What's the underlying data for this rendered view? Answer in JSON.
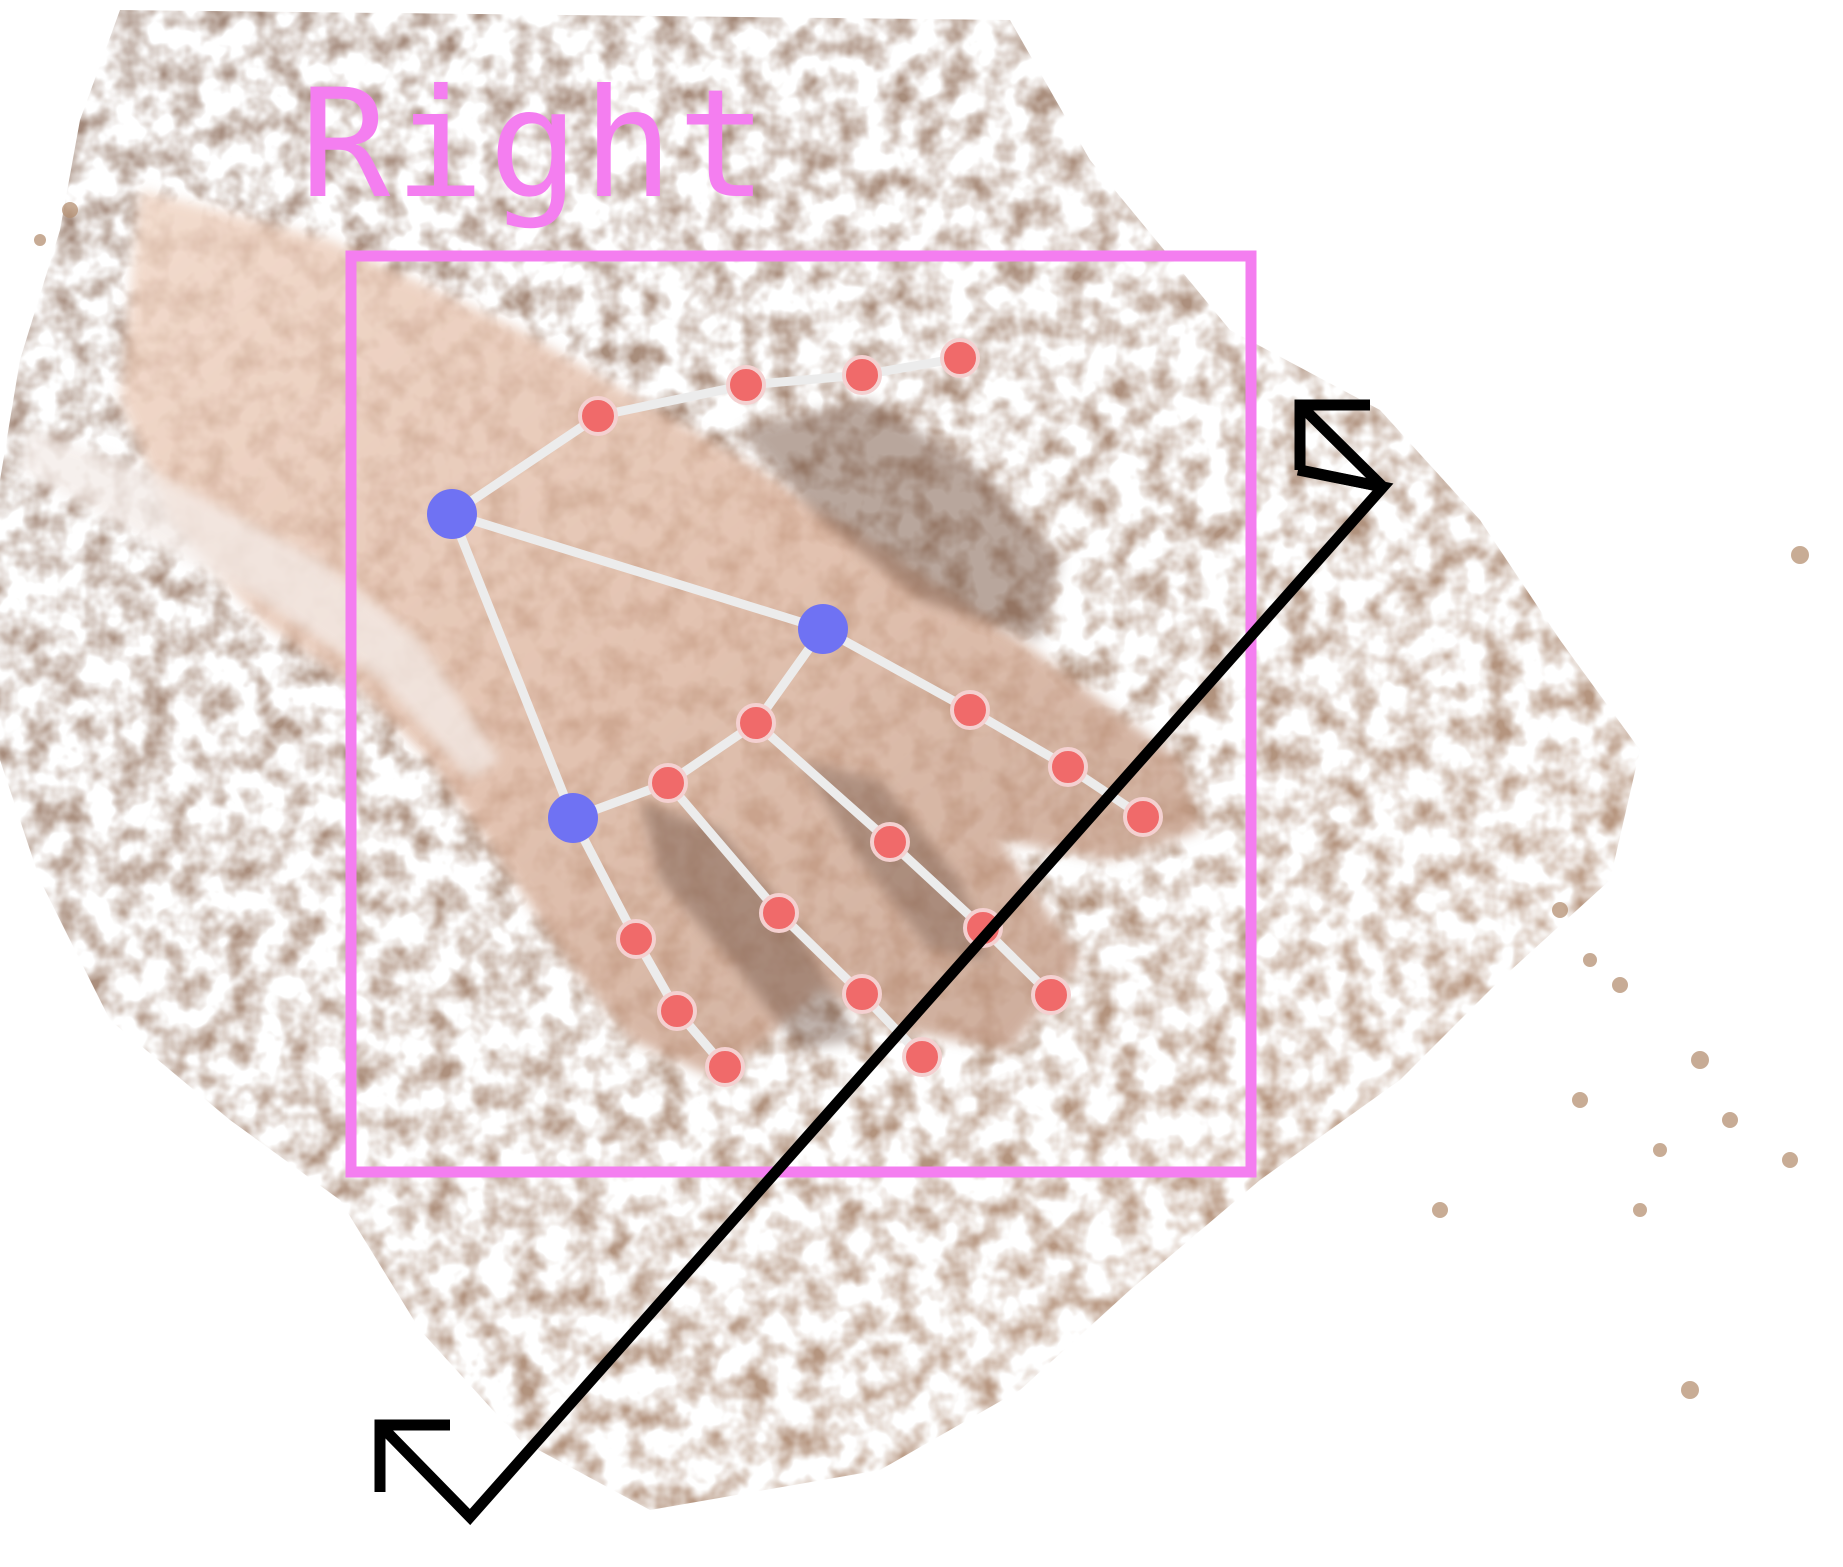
{
  "hand_label": {
    "text": "Right"
  },
  "colors": {
    "label": "#f47ef0",
    "bounding_box": "#f47ef0",
    "skeleton_line": "#ececec",
    "joint_fill": "#f06a6a",
    "joint_outline": "#f4d0d0",
    "anchor_joint_fill": "#6f72f3",
    "arrow": "#000000",
    "background": "#ffffff",
    "hand_skin_light": "#e6c2ad",
    "hand_skin_dark": "#a37a63",
    "point_cloud_bg": "#9b7c69"
  },
  "icons": {
    "double_arrow": "diagonal-double-arrow-icon"
  }
}
